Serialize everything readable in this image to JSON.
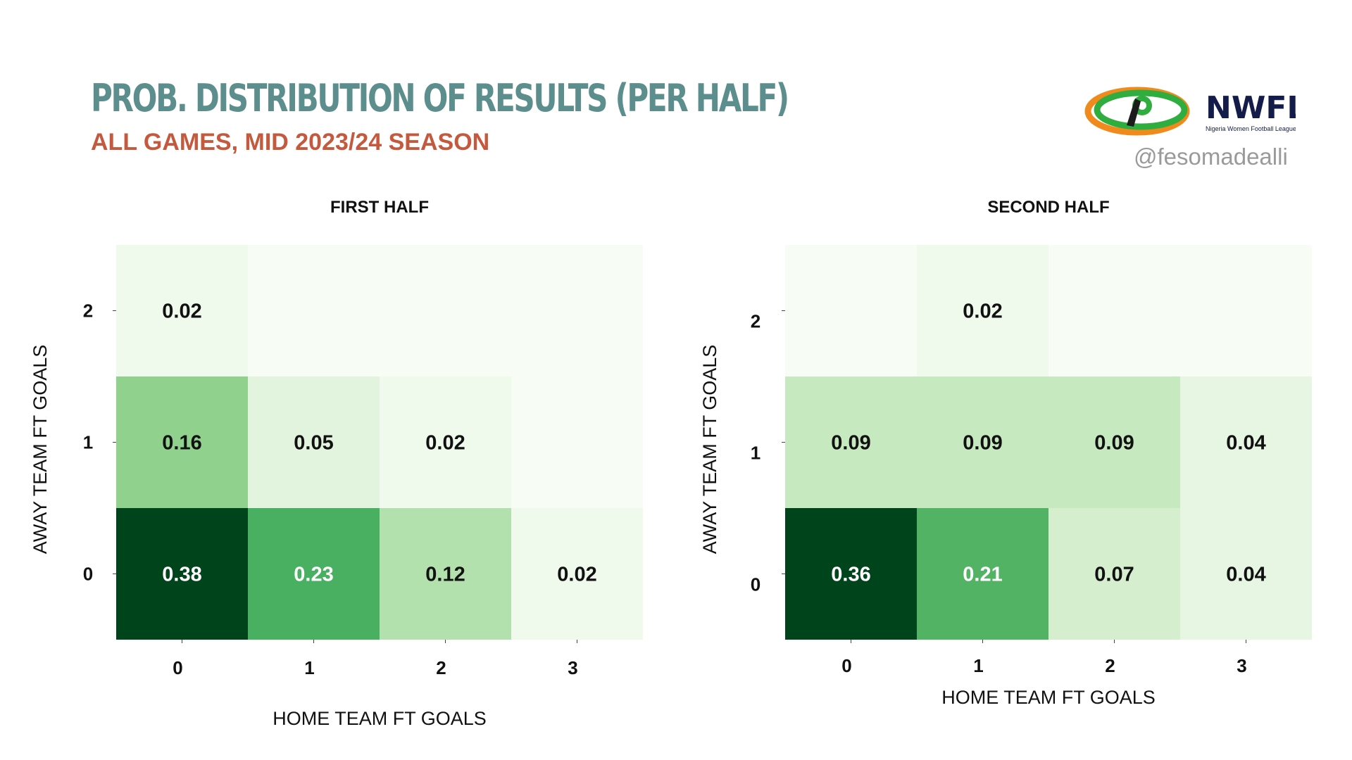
{
  "header": {
    "title": "PROB. DISTRIBUTION OF RESULTS (PER HALF)",
    "subtitle": "ALL GAMES, MID 2023/24 SEASON",
    "logo_text": "NWFL",
    "logo_tagline": "Nigeria Women Football League",
    "handle": "@fesomadealli"
  },
  "colors": {
    "title": "#5b8e8c",
    "subtitle": "#c4593d",
    "handle": "#9a9a9a",
    "colormap": [
      "#f7fcf5",
      "#e5f5e0",
      "#c7e9c0",
      "#a1d99b",
      "#74c476",
      "#41ab5d",
      "#238b45",
      "#006d2c",
      "#00441b"
    ]
  },
  "chart_data": [
    {
      "type": "heatmap",
      "title": "FIRST HALF",
      "xlabel": "HOME TEAM FT GOALS",
      "ylabel": "AWAY TEAM FT GOALS",
      "x_categories": [
        "0",
        "1",
        "2",
        "3"
      ],
      "y_categories": [
        "0",
        "1",
        "2"
      ],
      "values": [
        [
          0.38,
          0.23,
          0.12,
          0.02
        ],
        [
          0.16,
          0.05,
          0.02,
          0.0
        ],
        [
          0.02,
          0.0,
          0.0,
          0.0
        ]
      ],
      "labels": [
        [
          "0.38",
          "0.23",
          "0.12",
          "0.02"
        ],
        [
          "0.16",
          "0.05",
          "0.02",
          ""
        ],
        [
          "0.02",
          "",
          "",
          ""
        ]
      ],
      "vmax": 0.38
    },
    {
      "type": "heatmap",
      "title": "SECOND HALF",
      "xlabel": "HOME TEAM FT GOALS",
      "ylabel": "AWAY TEAM FT GOALS",
      "x_categories": [
        "0",
        "1",
        "2",
        "3"
      ],
      "y_categories": [
        "0",
        "1",
        "2"
      ],
      "values": [
        [
          0.36,
          0.21,
          0.07,
          0.04
        ],
        [
          0.09,
          0.09,
          0.09,
          0.04
        ],
        [
          0.0,
          0.02,
          0.0,
          0.0
        ]
      ],
      "labels": [
        [
          "0.36",
          "0.21",
          "0.07",
          "0.04"
        ],
        [
          "0.09",
          "0.09",
          "0.09",
          "0.04"
        ],
        [
          "",
          "0.02",
          "",
          ""
        ]
      ],
      "vmax": 0.36
    }
  ]
}
